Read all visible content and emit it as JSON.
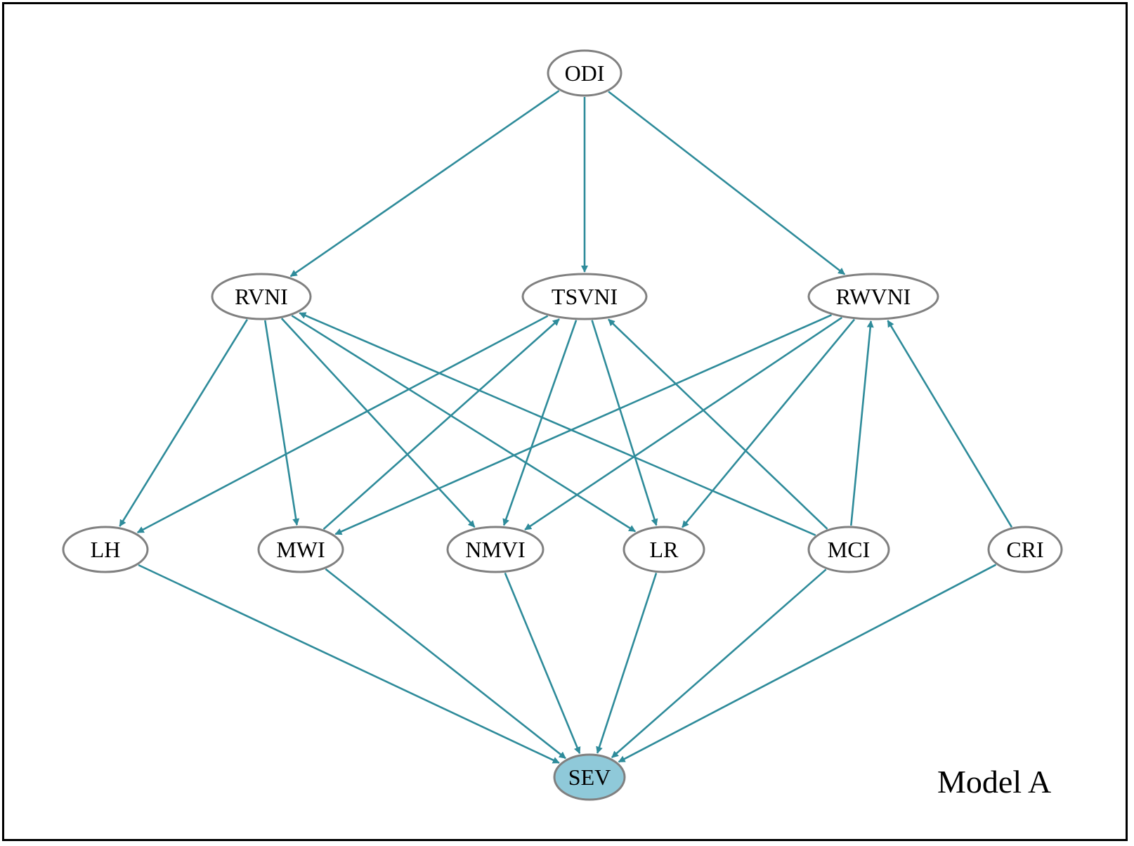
{
  "figure": {
    "model_label": "Model A"
  },
  "colors": {
    "edge": "#2E8B9A",
    "node_border": "#808080",
    "node_fill": "#ffffff",
    "highlight_fill": "#8FC9D9",
    "frame": "#000000"
  },
  "nodes": [
    {
      "id": "ODI",
      "label": "ODI"
    },
    {
      "id": "RVNI",
      "label": "RVNI"
    },
    {
      "id": "TSVNI",
      "label": "TSVNI"
    },
    {
      "id": "RWVNI",
      "label": "RWVNI"
    },
    {
      "id": "LH",
      "label": "LH"
    },
    {
      "id": "MWI",
      "label": "MWI"
    },
    {
      "id": "NMVI",
      "label": "NMVI"
    },
    {
      "id": "LR",
      "label": "LR"
    },
    {
      "id": "MCI",
      "label": "MCI"
    },
    {
      "id": "CRI",
      "label": "CRI"
    },
    {
      "id": "SEV",
      "label": "SEV",
      "highlighted": true
    }
  ],
  "edges": [
    {
      "from": "ODI",
      "to": "RVNI"
    },
    {
      "from": "ODI",
      "to": "TSVNI"
    },
    {
      "from": "ODI",
      "to": "RWVNI"
    },
    {
      "from": "RVNI",
      "to": "LH"
    },
    {
      "from": "RVNI",
      "to": "MWI"
    },
    {
      "from": "RVNI",
      "to": "NMVI"
    },
    {
      "from": "RVNI",
      "to": "LR"
    },
    {
      "from": "TSVNI",
      "to": "LH"
    },
    {
      "from": "TSVNI",
      "to": "NMVI"
    },
    {
      "from": "TSVNI",
      "to": "LR"
    },
    {
      "from": "RWVNI",
      "to": "MWI"
    },
    {
      "from": "RWVNI",
      "to": "NMVI"
    },
    {
      "from": "RWVNI",
      "to": "LR"
    },
    {
      "from": "MWI",
      "to": "TSVNI"
    },
    {
      "from": "MCI",
      "to": "RVNI"
    },
    {
      "from": "MCI",
      "to": "TSVNI"
    },
    {
      "from": "MCI",
      "to": "RWVNI"
    },
    {
      "from": "CRI",
      "to": "RWVNI"
    },
    {
      "from": "LH",
      "to": "SEV"
    },
    {
      "from": "MWI",
      "to": "SEV"
    },
    {
      "from": "NMVI",
      "to": "SEV"
    },
    {
      "from": "LR",
      "to": "SEV"
    },
    {
      "from": "MCI",
      "to": "SEV"
    },
    {
      "from": "CRI",
      "to": "SEV"
    }
  ]
}
